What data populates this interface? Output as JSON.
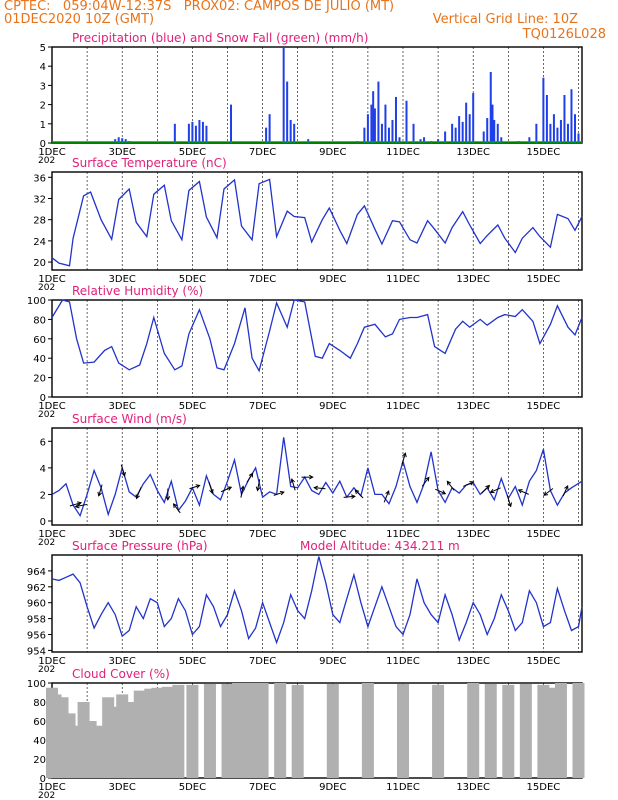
{
  "header": {
    "line1": "CPTEC:   059:04W-12:37S   PROX02: CAMPOS DE JULIO (MT)",
    "date": "01DEC2020 10Z (GMT)",
    "grid_note": "Vertical Grid Line: 10Z",
    "code": "TQ0126L028",
    "colors": {
      "header": "#e8731a",
      "title": "#e0207a",
      "line": "#2233cc",
      "bar": "#1f3fe8",
      "cloud": "#b0b0b0",
      "snow": "#00aa00"
    }
  },
  "x_axis": {
    "ticks": [
      "1DEC",
      "3DEC",
      "5DEC",
      "7DEC",
      "9DEC",
      "11DEC",
      "13DEC",
      "15DEC"
    ],
    "tick_days": [
      1,
      3,
      5,
      7,
      9,
      11,
      13,
      15
    ],
    "range_days": [
      1,
      16.1
    ],
    "start_label": "202"
  },
  "panels": [
    {
      "id": "precip",
      "title": "Precipitation (blue) and Snow Fall (green) (mm/h)",
      "extra": ""
    },
    {
      "id": "temp",
      "title": "Surface Temperature (nC)",
      "extra": ""
    },
    {
      "id": "rh",
      "title": "Relative Humidity (%)",
      "extra": ""
    },
    {
      "id": "wind",
      "title": "Surface Wind (m/s)",
      "extra": ""
    },
    {
      "id": "pres",
      "title": "Surface Pressure (hPa)",
      "extra": "Model Altitude: 434.211 m"
    },
    {
      "id": "cloud",
      "title": "Cloud Cover (%)",
      "extra": ""
    }
  ],
  "chart_data": [
    {
      "id": "precip",
      "type": "bar",
      "title": "Precipitation (blue) and Snow Fall (green) (mm/h)",
      "ylim": [
        0,
        5
      ],
      "yticks": [
        0,
        1,
        2,
        3,
        4,
        5
      ],
      "x": [
        2.8,
        2.9,
        3.0,
        3.1,
        3.2,
        4.5,
        4.9,
        5.0,
        5.1,
        5.2,
        5.3,
        5.4,
        6.1,
        7.1,
        7.2,
        7.6,
        7.7,
        7.8,
        7.9,
        8.3,
        9.7,
        9.9,
        10.0,
        10.1,
        10.15,
        10.2,
        10.3,
        10.4,
        10.5,
        10.6,
        10.7,
        10.8,
        10.9,
        11.1,
        11.3,
        11.5,
        11.6,
        11.8,
        12.0,
        12.2,
        12.4,
        12.5,
        12.6,
        12.7,
        12.8,
        12.9,
        13.0,
        13.3,
        13.4,
        13.5,
        13.55,
        13.6,
        13.7,
        13.8,
        14.3,
        14.6,
        14.8,
        15.0,
        15.1,
        15.2,
        15.3,
        15.4,
        15.5,
        15.6,
        15.7,
        15.8,
        15.9,
        16.0
      ],
      "values": [
        0.2,
        0.3,
        0.25,
        0.2,
        0.1,
        1.0,
        1.0,
        1.1,
        0.9,
        1.2,
        1.1,
        0.9,
        2.0,
        0.8,
        1.5,
        5.0,
        3.2,
        1.2,
        1.0,
        0.2,
        0.1,
        0.8,
        1.5,
        2.0,
        2.7,
        1.8,
        3.2,
        1.0,
        2.0,
        0.8,
        1.2,
        2.4,
        0.3,
        2.2,
        1.0,
        0.2,
        0.3,
        0.1,
        0.2,
        0.6,
        1.0,
        0.8,
        1.4,
        1.1,
        2.1,
        1.5,
        2.6,
        0.6,
        1.3,
        3.7,
        2.0,
        1.2,
        1.0,
        0.3,
        0.1,
        0.3,
        1.0,
        3.4,
        2.5,
        1.0,
        1.5,
        0.8,
        1.2,
        2.5,
        1.0,
        2.8,
        1.5,
        0.5
      ],
      "snow": 0
    },
    {
      "id": "temp",
      "type": "line",
      "title": "Surface Temperature (nC)",
      "ylim": [
        18.5,
        37
      ],
      "yticks": [
        20,
        24,
        28,
        32,
        36
      ],
      "x": [
        1.0,
        1.2,
        1.5,
        1.6,
        1.9,
        2.1,
        2.4,
        2.7,
        2.9,
        3.2,
        3.4,
        3.7,
        3.9,
        4.2,
        4.4,
        4.7,
        4.9,
        5.2,
        5.4,
        5.7,
        5.9,
        6.2,
        6.4,
        6.7,
        6.9,
        7.2,
        7.4,
        7.7,
        7.9,
        8.2,
        8.4,
        8.7,
        8.9,
        9.2,
        9.4,
        9.7,
        9.9,
        10.2,
        10.4,
        10.7,
        10.9,
        11.2,
        11.4,
        11.7,
        11.9,
        12.2,
        12.4,
        12.7,
        12.9,
        13.2,
        13.4,
        13.7,
        13.9,
        14.2,
        14.4,
        14.7,
        14.9,
        15.2,
        15.4,
        15.7,
        15.9,
        16.1
      ],
      "values": [
        20.8,
        19.8,
        19.3,
        24.5,
        32.5,
        33.2,
        28.0,
        24.3,
        31.8,
        33.8,
        27.5,
        24.8,
        32.8,
        34.5,
        27.8,
        24.2,
        33.5,
        35.2,
        28.5,
        24.6,
        33.8,
        35.5,
        26.8,
        24.2,
        34.8,
        35.6,
        24.8,
        29.6,
        28.6,
        28.4,
        23.8,
        28.0,
        30.2,
        26.0,
        23.5,
        29.0,
        30.6,
        26.2,
        23.4,
        27.8,
        27.6,
        24.2,
        23.6,
        27.8,
        26.2,
        23.6,
        26.5,
        29.5,
        27.0,
        23.5,
        25.0,
        27.0,
        24.5,
        21.8,
        24.5,
        26.5,
        24.8,
        22.8,
        29.0,
        28.2,
        26.0,
        28.6
      ]
    },
    {
      "id": "rh",
      "type": "line",
      "title": "Relative Humidity (%)",
      "ylim": [
        0,
        100
      ],
      "yticks": [
        0,
        20,
        40,
        60,
        80,
        100
      ],
      "x": [
        1.0,
        1.3,
        1.5,
        1.7,
        1.9,
        2.2,
        2.5,
        2.7,
        2.9,
        3.2,
        3.5,
        3.7,
        3.9,
        4.2,
        4.5,
        4.7,
        4.9,
        5.2,
        5.5,
        5.7,
        5.9,
        6.2,
        6.5,
        6.7,
        6.9,
        7.2,
        7.4,
        7.7,
        7.9,
        8.2,
        8.5,
        8.7,
        8.9,
        9.2,
        9.5,
        9.7,
        9.9,
        10.2,
        10.5,
        10.7,
        10.9,
        11.2,
        11.4,
        11.7,
        11.9,
        12.2,
        12.5,
        12.7,
        12.9,
        13.2,
        13.4,
        13.7,
        13.9,
        14.2,
        14.4,
        14.7,
        14.9,
        15.2,
        15.4,
        15.7,
        15.9,
        16.1
      ],
      "values": [
        82,
        100,
        98,
        60,
        35,
        36,
        48,
        52,
        35,
        28,
        33,
        55,
        82,
        45,
        28,
        32,
        65,
        90,
        60,
        30,
        28,
        55,
        92,
        40,
        27,
        68,
        97,
        72,
        100,
        98,
        42,
        40,
        55,
        48,
        40,
        55,
        72,
        75,
        62,
        65,
        80,
        82,
        82,
        85,
        52,
        45,
        70,
        78,
        72,
        80,
        74,
        82,
        85,
        83,
        90,
        78,
        55,
        75,
        94,
        72,
        64,
        82
      ]
    },
    {
      "id": "wind",
      "type": "line",
      "title": "Surface Wind (m/s)",
      "ylim": [
        -0.3,
        7
      ],
      "yticks": [
        0,
        2,
        4,
        6
      ],
      "x": [
        1.0,
        1.2,
        1.4,
        1.6,
        1.8,
        2.0,
        2.2,
        2.4,
        2.6,
        2.8,
        3.0,
        3.2,
        3.4,
        3.6,
        3.8,
        4.0,
        4.2,
        4.4,
        4.6,
        4.8,
        5.0,
        5.2,
        5.4,
        5.6,
        5.8,
        6.0,
        6.2,
        6.4,
        6.6,
        6.8,
        7.0,
        7.2,
        7.4,
        7.6,
        7.8,
        8.0,
        8.2,
        8.4,
        8.6,
        8.8,
        9.0,
        9.2,
        9.4,
        9.6,
        9.8,
        10.0,
        10.2,
        10.4,
        10.6,
        10.8,
        11.0,
        11.2,
        11.4,
        11.6,
        11.8,
        12.0,
        12.2,
        12.4,
        12.6,
        12.8,
        13.0,
        13.2,
        13.4,
        13.6,
        13.8,
        14.0,
        14.2,
        14.4,
        14.6,
        14.8,
        15.0,
        15.2,
        15.4,
        15.6,
        15.8,
        16.1
      ],
      "values": [
        2.0,
        2.3,
        2.8,
        1.2,
        0.4,
        2.0,
        3.8,
        2.5,
        0.5,
        2.0,
        4.0,
        2.2,
        1.8,
        2.8,
        3.5,
        2.3,
        1.4,
        3.0,
        0.8,
        1.5,
        2.5,
        1.2,
        3.4,
        2.0,
        1.6,
        3.0,
        4.6,
        2.0,
        3.1,
        4.0,
        1.8,
        2.2,
        2.0,
        6.3,
        2.6,
        2.5,
        3.3,
        2.3,
        2.0,
        2.9,
        2.1,
        3.0,
        1.8,
        2.5,
        1.9,
        4.0,
        2.0,
        2.0,
        1.3,
        2.6,
        4.5,
        2.6,
        1.4,
        2.8,
        5.2,
        2.3,
        1.4,
        2.5,
        2.1,
        2.7,
        2.9,
        2.0,
        2.5,
        1.6,
        3.2,
        1.7,
        2.6,
        1.2,
        3.0,
        3.8,
        5.4,
        2.3,
        1.2,
        2.1,
        2.5,
        3.0
      ],
      "vectors": [
        {
          "day": 1.6,
          "u": 1,
          "v": 0.3
        },
        {
          "day": 1.9,
          "u": -1,
          "v": -0.2
        },
        {
          "day": 2.4,
          "u": -0.3,
          "v": -1
        },
        {
          "day": 3.0,
          "u": 0.3,
          "v": -1
        },
        {
          "day": 3.5,
          "u": -0.4,
          "v": -1
        },
        {
          "day": 4.3,
          "u": 0,
          "v": -1
        },
        {
          "day": 4.6,
          "u": -0.6,
          "v": 0.8
        },
        {
          "day": 5.0,
          "u": 0.9,
          "v": 0.3
        },
        {
          "day": 5.5,
          "u": 0.3,
          "v": -1
        },
        {
          "day": 5.9,
          "u": 0.9,
          "v": 0.4
        },
        {
          "day": 6.4,
          "u": 0.2,
          "v": 1
        },
        {
          "day": 6.6,
          "u": 0.5,
          "v": 0.8
        },
        {
          "day": 6.9,
          "u": -0.2,
          "v": -1
        },
        {
          "day": 7.4,
          "u": 0.9,
          "v": 0.3
        },
        {
          "day": 7.9,
          "u": -0.3,
          "v": 1
        },
        {
          "day": 8.2,
          "u": 1,
          "v": 0
        },
        {
          "day": 8.7,
          "u": -1,
          "v": 0.1
        },
        {
          "day": 9.4,
          "u": 1,
          "v": 0.1
        },
        {
          "day": 9.8,
          "u": -0.7,
          "v": 0.7
        },
        {
          "day": 10.5,
          "u": 0.4,
          "v": 1
        },
        {
          "day": 11.0,
          "u": 0.3,
          "v": 1
        },
        {
          "day": 11.6,
          "u": 0.6,
          "v": 0.8
        },
        {
          "day": 12.0,
          "u": 0.9,
          "v": -0.4
        },
        {
          "day": 12.4,
          "u": -0.6,
          "v": 0.8
        },
        {
          "day": 12.8,
          "u": 0.9,
          "v": 0.4
        },
        {
          "day": 13.3,
          "u": 0.7,
          "v": 0.7
        },
        {
          "day": 13.7,
          "u": -0.9,
          "v": -0.4
        },
        {
          "day": 14.0,
          "u": 0.3,
          "v": -1
        },
        {
          "day": 14.5,
          "u": -0.9,
          "v": 0.4
        },
        {
          "day": 15.2,
          "u": -0.8,
          "v": -0.6
        },
        {
          "day": 15.6,
          "u": 0.4,
          "v": 0.9
        }
      ]
    },
    {
      "id": "pres",
      "type": "line",
      "title": "Surface Pressure (hPa)",
      "ylim": [
        953.8,
        966
      ],
      "yticks": [
        954,
        956,
        958,
        960,
        962,
        964
      ],
      "x": [
        1.0,
        1.2,
        1.4,
        1.6,
        1.8,
        2.0,
        2.2,
        2.4,
        2.6,
        2.8,
        3.0,
        3.2,
        3.4,
        3.6,
        3.8,
        4.0,
        4.2,
        4.4,
        4.6,
        4.8,
        5.0,
        5.2,
        5.4,
        5.6,
        5.8,
        6.0,
        6.2,
        6.4,
        6.6,
        6.8,
        7.0,
        7.2,
        7.4,
        7.6,
        7.8,
        8.0,
        8.2,
        8.4,
        8.6,
        8.8,
        9.0,
        9.2,
        9.4,
        9.6,
        9.8,
        10.0,
        10.2,
        10.4,
        10.6,
        10.8,
        11.0,
        11.2,
        11.4,
        11.6,
        11.8,
        12.0,
        12.2,
        12.4,
        12.6,
        12.8,
        13.0,
        13.2,
        13.4,
        13.6,
        13.8,
        14.0,
        14.2,
        14.4,
        14.6,
        14.8,
        15.0,
        15.2,
        15.4,
        15.6,
        15.8,
        16.0,
        16.1
      ],
      "values": [
        963.0,
        962.8,
        963.2,
        963.6,
        962.5,
        959.5,
        956.8,
        958.5,
        960.0,
        958.5,
        955.8,
        956.5,
        959.5,
        958.0,
        960.5,
        960.0,
        957.0,
        958.0,
        960.5,
        959.0,
        956.0,
        957.0,
        961.0,
        959.5,
        957.0,
        958.5,
        961.5,
        959.0,
        955.5,
        956.8,
        960.0,
        957.5,
        955.0,
        957.5,
        961.0,
        959.0,
        958.0,
        961.5,
        965.8,
        962.5,
        958.5,
        957.5,
        960.5,
        963.5,
        960.0,
        957.0,
        959.5,
        962.0,
        959.5,
        957.0,
        956.0,
        958.5,
        963.0,
        960.0,
        958.5,
        957.5,
        961.0,
        958.5,
        955.3,
        957.5,
        960.0,
        958.5,
        956.0,
        958.0,
        961.0,
        959.0,
        956.5,
        957.5,
        961.5,
        960.0,
        957.0,
        957.5,
        961.8,
        959.0,
        956.5,
        957.0,
        959.5
      ]
    },
    {
      "id": "cloud",
      "type": "bar",
      "title": "Cloud Cover (%)",
      "ylim": [
        0,
        100
      ],
      "yticks": [
        0,
        20,
        40,
        60,
        80,
        100
      ],
      "x": [
        1.0,
        1.1,
        1.2,
        1.3,
        1.4,
        1.5,
        1.6,
        1.7,
        1.8,
        1.9,
        2.0,
        2.1,
        2.2,
        2.3,
        2.4,
        2.5,
        2.6,
        2.7,
        2.8,
        2.9,
        3.0,
        3.2,
        3.5,
        3.8,
        4.0,
        4.3,
        4.6,
        5.0,
        5.5,
        6.0,
        6.3,
        6.5,
        6.7,
        6.8,
        7.0,
        7.5,
        8.0,
        9.0,
        10.0,
        11.0,
        12.0,
        13.0,
        13.5,
        14.0,
        14.5,
        15.0,
        15.3,
        15.5,
        16.0
      ],
      "values": [
        95,
        88,
        70,
        85,
        40,
        68,
        5,
        55,
        45,
        80,
        30,
        60,
        25,
        55,
        40,
        20,
        85,
        60,
        30,
        75,
        88,
        80,
        92,
        94,
        95,
        96,
        98,
        98,
        99,
        99,
        100,
        100,
        100,
        5,
        100,
        100,
        98,
        99,
        100,
        99,
        98,
        100,
        99,
        98,
        99,
        98,
        95,
        100,
        100
      ]
    }
  ]
}
